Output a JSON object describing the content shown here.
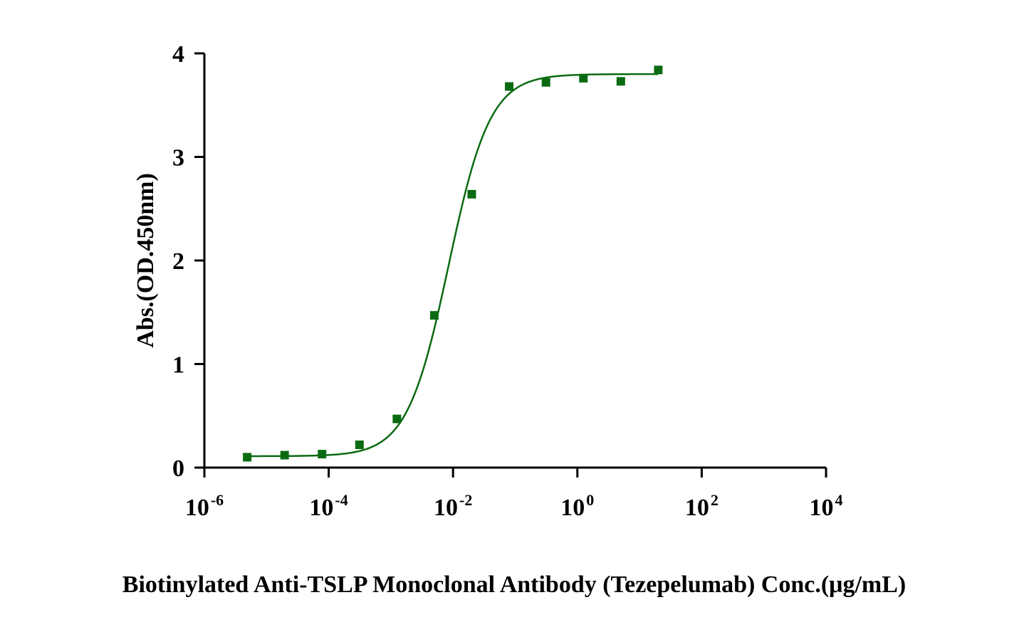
{
  "chart_data": {
    "type": "scatter",
    "title": "",
    "xlabel": "Biotinylated Anti-TSLP Monoclonal Antibody (Tezepelumab)  Conc.(μg/mL)",
    "ylabel": "Abs.(OD.450nm)",
    "x_scale": "log10",
    "xlim": [
      1e-06,
      10000
    ],
    "ylim": [
      0,
      4
    ],
    "x_ticks": [
      {
        "base": "10",
        "exp": "-6"
      },
      {
        "base": "10",
        "exp": "-4"
      },
      {
        "base": "10",
        "exp": "-2"
      },
      {
        "base": "10",
        "exp": "0"
      },
      {
        "base": "10",
        "exp": "2"
      },
      {
        "base": "10",
        "exp": "4"
      }
    ],
    "y_ticks": [
      "0",
      "1",
      "2",
      "3",
      "4"
    ],
    "grid": false,
    "color": "#0b6b12",
    "series": [
      {
        "marker": "square",
        "points": [
          {
            "x": 4.8828e-06,
            "y": 0.1
          },
          {
            "x": 1.95313e-05,
            "y": 0.12
          },
          {
            "x": 7.8125e-05,
            "y": 0.13
          },
          {
            "x": 0.0003125,
            "y": 0.22
          },
          {
            "x": 0.00125,
            "y": 0.47
          },
          {
            "x": 0.005,
            "y": 1.47
          },
          {
            "x": 0.02,
            "y": 2.64
          },
          {
            "x": 0.08,
            "y": 3.68
          },
          {
            "x": 0.3125,
            "y": 3.72
          },
          {
            "x": 1.25,
            "y": 3.76
          },
          {
            "x": 5,
            "y": 3.73
          },
          {
            "x": 20,
            "y": 3.84
          }
        ],
        "fit": {
          "model": "4PL",
          "bottom": 0.11,
          "top": 3.8,
          "ec50": 0.0085,
          "hill": 1.3
        }
      }
    ]
  }
}
